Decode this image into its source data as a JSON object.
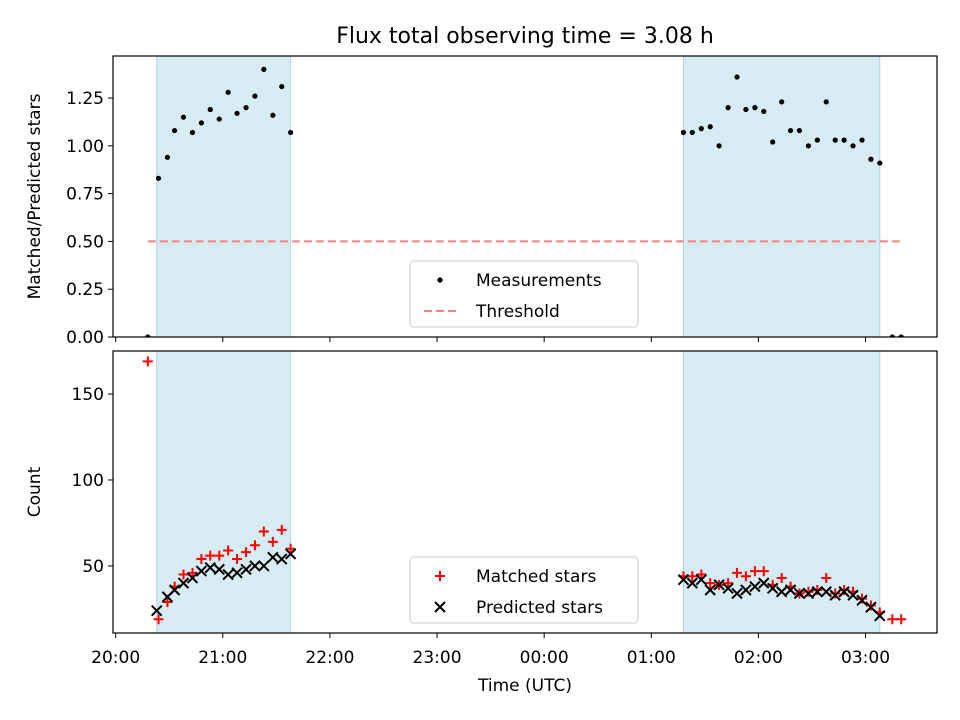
{
  "chart_data": {
    "title": "Flux total observing time = 3.08 h",
    "xlabel": "Time (UTC)",
    "x_tick_labels": [
      "20:00",
      "21:00",
      "22:00",
      "23:00",
      "00:00",
      "01:00",
      "02:00",
      "03:00"
    ],
    "x_tick_hours": [
      20,
      21,
      22,
      23,
      24,
      25,
      26,
      27
    ],
    "xlim_hours": [
      19.975,
      27.667
    ],
    "shaded_spans_hours": [
      [
        20.383,
        21.633
      ],
      [
        25.3,
        27.133
      ]
    ],
    "colors": {
      "span": "#add8e6",
      "matched": "#ff0000",
      "predicted": "#000000",
      "threshold": "#ff7f7f",
      "measurement": "#000000"
    },
    "panels": [
      {
        "type": "scatter",
        "ylabel": "Matched/Predicted stars",
        "ylim": [
          0,
          1.47
        ],
        "y_ticks": [
          0.0,
          0.25,
          0.5,
          0.75,
          1.0,
          1.25
        ],
        "y_tick_labels": [
          "0.00",
          "0.25",
          "0.50",
          "0.75",
          "1.00",
          "1.25"
        ],
        "legend": [
          "Measurements",
          "Threshold"
        ],
        "legend_placement": "lower center",
        "threshold": {
          "y": 0.5,
          "x_range_hours": [
            20.3,
            27.333
          ]
        },
        "series": [
          {
            "name": "Measurements",
            "x_hours": [
              20.3,
              20.4,
              20.483,
              20.55,
              20.633,
              20.717,
              20.8,
              20.883,
              20.967,
              21.05,
              21.133,
              21.217,
              21.3,
              21.383,
              21.467,
              21.55,
              21.633,
              25.3,
              25.383,
              25.467,
              25.55,
              25.633,
              25.717,
              25.8,
              25.883,
              25.967,
              26.05,
              26.133,
              26.217,
              26.3,
              26.383,
              26.467,
              26.55,
              26.633,
              26.717,
              26.8,
              26.883,
              26.967,
              27.05,
              27.133,
              27.25,
              27.333
            ],
            "y": [
              0.0,
              0.83,
              0.94,
              1.08,
              1.15,
              1.07,
              1.12,
              1.19,
              1.14,
              1.28,
              1.17,
              1.2,
              1.26,
              1.4,
              1.16,
              1.31,
              1.07,
              1.07,
              1.07,
              1.09,
              1.1,
              1.0,
              1.2,
              1.36,
              1.19,
              1.2,
              1.18,
              1.02,
              1.23,
              1.08,
              1.08,
              1.0,
              1.03,
              1.23,
              1.03,
              1.03,
              1.0,
              1.03,
              0.93,
              0.91,
              0.0,
              0.0
            ]
          }
        ]
      },
      {
        "type": "scatter",
        "ylabel": "Count",
        "ylim": [
          11,
          175
        ],
        "y_ticks": [
          50,
          100,
          150
        ],
        "y_tick_labels": [
          "50",
          "100",
          "150"
        ],
        "legend": [
          "Matched stars",
          "Predicted stars"
        ],
        "legend_placement": "lower center",
        "series": [
          {
            "name": "Matched stars",
            "x_hours": [
              20.3,
              20.4,
              20.483,
              20.55,
              20.633,
              20.717,
              20.8,
              20.883,
              20.967,
              21.05,
              21.133,
              21.217,
              21.3,
              21.383,
              21.467,
              21.55,
              21.633,
              25.3,
              25.383,
              25.467,
              25.55,
              25.633,
              25.717,
              25.8,
              25.883,
              25.967,
              26.05,
              26.133,
              26.217,
              26.3,
              26.383,
              26.467,
              26.55,
              26.633,
              26.717,
              26.8,
              26.883,
              26.967,
              27.05,
              27.133,
              27.25,
              27.333
            ],
            "y": [
              169,
              19,
              29,
              38,
              45,
              46,
              54,
              56,
              56,
              59,
              54,
              58,
              62,
              70,
              64,
              71,
              60,
              44,
              44,
              45,
              40,
              39,
              40,
              46,
              44,
              47,
              47,
              39,
              43,
              38,
              34,
              35,
              36,
              43,
              34,
              36,
              35,
              31,
              27,
              23,
              19,
              19
            ]
          },
          {
            "name": "Predicted stars",
            "x_hours": [
              20.383,
              20.483,
              20.55,
              20.633,
              20.717,
              20.8,
              20.883,
              20.967,
              21.05,
              21.133,
              21.217,
              21.3,
              21.383,
              21.467,
              21.55,
              21.633,
              25.3,
              25.383,
              25.467,
              25.55,
              25.633,
              25.717,
              25.8,
              25.883,
              25.967,
              26.05,
              26.133,
              26.217,
              26.3,
              26.383,
              26.467,
              26.55,
              26.633,
              26.717,
              26.8,
              26.883,
              26.967,
              27.05,
              27.133
            ],
            "y": [
              24,
              32,
              36,
              40,
              43,
              47,
              49,
              48,
              45,
              46,
              48,
              50,
              50,
              55,
              54,
              57,
              42,
              40,
              42,
              36,
              39,
              37,
              34,
              36,
              38,
              40,
              37,
              35,
              36,
              34,
              34,
              35,
              35,
              33,
              35,
              33,
              30,
              26,
              21
            ]
          }
        ]
      }
    ]
  }
}
